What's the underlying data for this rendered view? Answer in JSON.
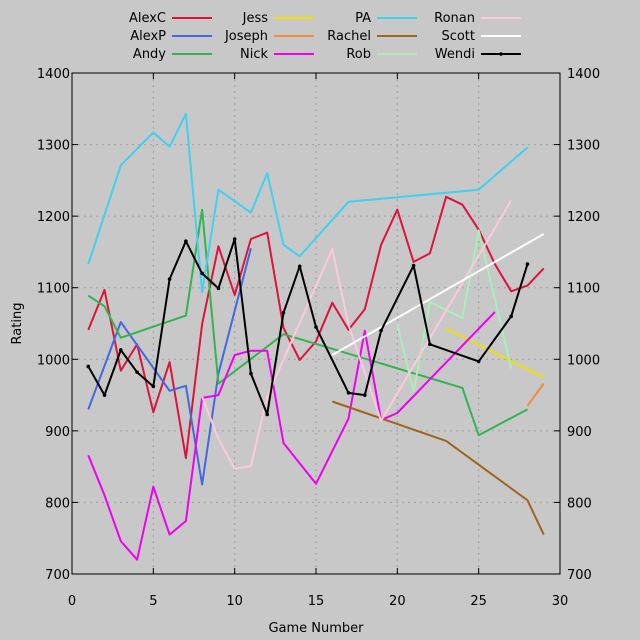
{
  "chart_data": {
    "type": "line",
    "title": "",
    "xlabel": "Game Number",
    "ylabel": "Rating",
    "xlim": [
      0,
      30
    ],
    "ylim": [
      700,
      1400
    ],
    "xticks": [
      0,
      5,
      10,
      15,
      20,
      25,
      30
    ],
    "yticks": [
      700,
      800,
      900,
      1000,
      1100,
      1200,
      1300,
      1400
    ],
    "grid": true,
    "legend_position": "top",
    "background_color": "#c8c8c8",
    "series": [
      {
        "name": "AlexC",
        "color": "#dc143c",
        "marker": "none",
        "x": [
          1,
          2,
          3,
          4,
          5,
          6,
          7,
          8,
          9,
          10,
          11,
          12,
          13,
          14,
          15,
          16,
          17,
          18,
          19,
          20,
          21,
          22,
          23,
          24,
          25,
          26,
          27,
          28,
          29
        ],
        "y": [
          1041,
          1097,
          984,
          1021,
          926,
          996,
          862,
          1049,
          1158,
          1090,
          1168,
          1177,
          1044,
          999,
          1025,
          1079,
          1041,
          1070,
          1160,
          1209,
          1136,
          1148,
          1227,
          1216,
          1181,
          1133,
          1095,
          1103,
          1127
        ]
      },
      {
        "name": "AlexP",
        "color": "#4169e1",
        "marker": "none",
        "x": [
          1,
          3,
          6,
          7,
          8,
          9,
          11
        ],
        "y": [
          930,
          1052,
          956,
          963,
          825,
          980,
          1155
        ]
      },
      {
        "name": "Andy",
        "color": "#32b450",
        "marker": "none",
        "x": [
          1,
          2,
          3,
          7,
          8,
          9,
          13,
          24,
          25,
          28
        ],
        "y": [
          1089,
          1074,
          1030,
          1061,
          1209,
          966,
          1035,
          960,
          894,
          930
        ]
      },
      {
        "name": "Jess",
        "color": "#f0e000",
        "marker": "none",
        "x": [
          23,
          29
        ],
        "y": [
          1043,
          975
        ]
      },
      {
        "name": "Joseph",
        "color": "#f08c3c",
        "marker": "none",
        "x": [
          28,
          29
        ],
        "y": [
          935,
          966
        ]
      },
      {
        "name": "Nick",
        "color": "#f000f0",
        "marker": "none",
        "x": [
          1,
          2,
          3,
          4,
          5,
          6,
          7,
          8,
          9,
          10,
          11,
          12,
          13,
          15,
          17,
          18,
          19,
          20,
          26
        ],
        "y": [
          866,
          810,
          746,
          720,
          822,
          755,
          774,
          946,
          950,
          1006,
          1012,
          1012,
          883,
          826,
          917,
          1040,
          915,
          925,
          1066
        ]
      },
      {
        "name": "PA",
        "color": "#40d0f0",
        "marker": "none",
        "x": [
          1,
          3,
          5,
          6,
          7,
          8,
          9,
          11,
          12,
          13,
          14,
          17,
          25,
          28
        ],
        "y": [
          1133,
          1271,
          1317,
          1297,
          1343,
          1094,
          1237,
          1205,
          1260,
          1160,
          1144,
          1220,
          1237,
          1296
        ]
      },
      {
        "name": "Rachel",
        "color": "#a0641e",
        "marker": "none",
        "x": [
          16,
          23,
          28,
          29
        ],
        "y": [
          941,
          886,
          803,
          755
        ]
      },
      {
        "name": "Rob",
        "color": "#a8f0b8",
        "marker": "none",
        "x": [
          20,
          21,
          22,
          23,
          24,
          25,
          27
        ],
        "y": [
          1049,
          955,
          1080,
          1069,
          1058,
          1180,
          987
        ]
      },
      {
        "name": "Ronan",
        "color": "#ffc8dc",
        "marker": "none",
        "x": [
          8,
          9,
          10,
          11,
          12,
          16,
          17,
          19,
          27
        ],
        "y": [
          948,
          889,
          847,
          851,
          948,
          1154,
          1048,
          914,
          1222
        ]
      },
      {
        "name": "Scott",
        "color": "#ffffff",
        "marker": "none",
        "x": [
          16,
          29
        ],
        "y": [
          1006,
          1175
        ]
      },
      {
        "name": "Wendi",
        "color": "#000000",
        "marker": "point",
        "x": [
          1,
          2,
          3,
          4,
          5,
          6,
          7,
          8,
          9,
          10,
          11,
          12,
          13,
          14,
          15,
          17,
          18,
          19,
          21,
          22,
          25,
          27,
          28
        ],
        "y": [
          990,
          950,
          1013,
          982,
          962,
          1112,
          1165,
          1120,
          1099,
          1168,
          980,
          923,
          1065,
          1130,
          1045,
          953,
          950,
          1040,
          1131,
          1021,
          997,
          1060,
          1133
        ]
      }
    ]
  }
}
